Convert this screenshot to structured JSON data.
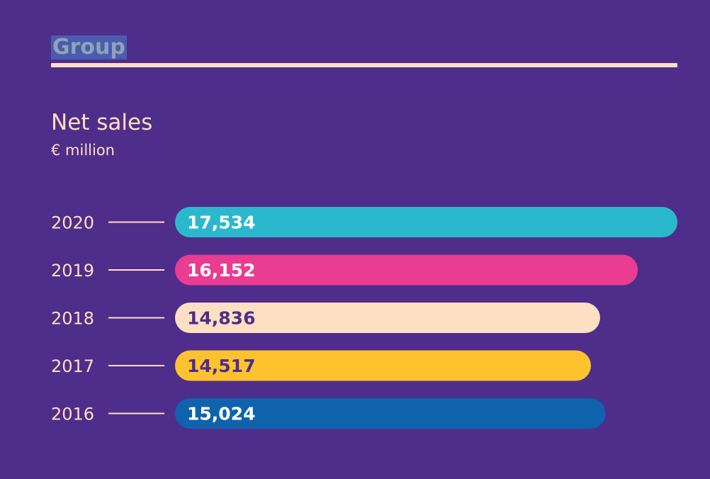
{
  "header": {
    "section_label": "Group"
  },
  "chart_data": {
    "type": "bar",
    "orientation": "horizontal",
    "title": "Net sales",
    "subtitle": "€ million",
    "categories": [
      "2020",
      "2019",
      "2018",
      "2017",
      "2016"
    ],
    "values": [
      17534,
      16152,
      14836,
      14517,
      15024
    ],
    "value_labels": [
      "17,534",
      "16,152",
      "14,836",
      "14,517",
      "15,024"
    ],
    "bar_colors": [
      "#2cb8cc",
      "#ea3c90",
      "#fde0c3",
      "#fec22f",
      "#0f63ad"
    ],
    "label_colors": [
      "#ffffff",
      "#ffffff",
      "#4f2d8a",
      "#4f2d8a",
      "#ffffff"
    ],
    "xlim": [
      0,
      17534
    ],
    "grid": false,
    "legend": "none"
  }
}
